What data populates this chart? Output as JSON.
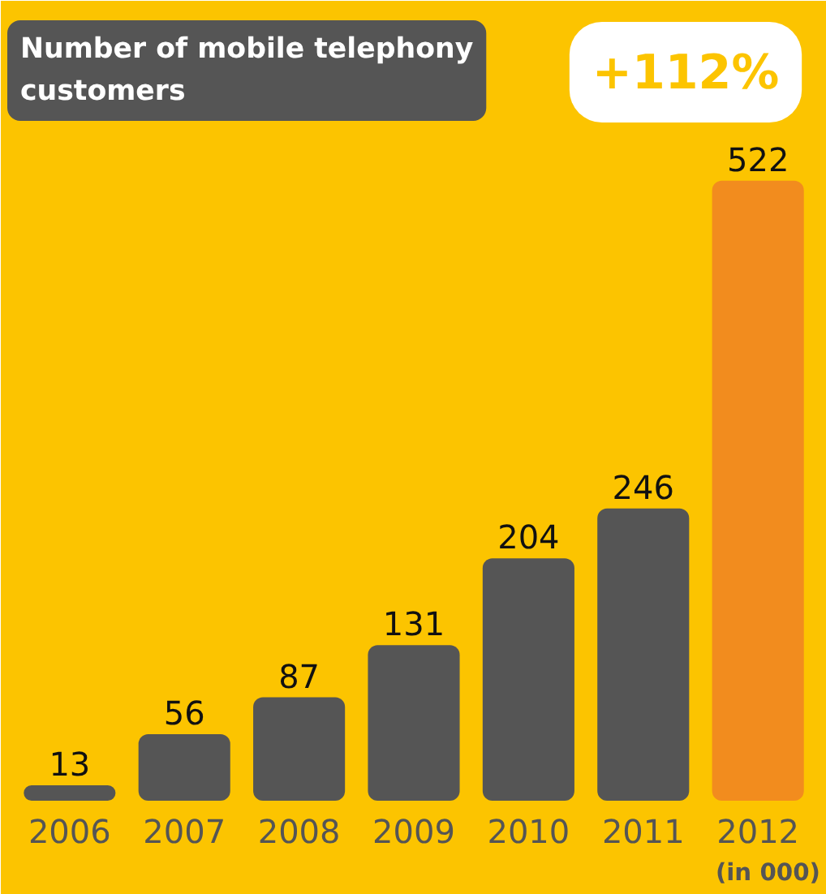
{
  "chart_data": {
    "type": "bar",
    "title": "Number of mobile telephony customers",
    "categories": [
      "2006",
      "2007",
      "2008",
      "2009",
      "2010",
      "2011",
      "2012"
    ],
    "values": [
      13,
      56,
      87,
      131,
      204,
      246,
      522
    ],
    "colors": [
      "#555555",
      "#555555",
      "#555555",
      "#555555",
      "#555555",
      "#555555",
      "#f28c1e"
    ],
    "data_labels": true,
    "grid": false,
    "annotations": [
      "+112%",
      "(in 000)"
    ]
  }
}
